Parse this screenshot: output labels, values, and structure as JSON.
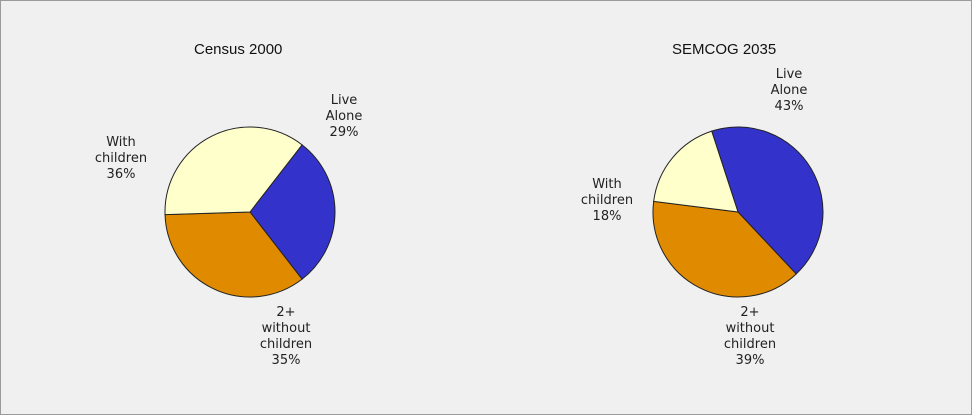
{
  "chart_data": [
    {
      "type": "pie",
      "title": "Census 2000",
      "slices": [
        {
          "label_lines": [
            "Live",
            "Alone"
          ],
          "value": 29,
          "value_text": "29%",
          "color": "#3333cc"
        },
        {
          "label_lines": [
            "2+",
            "without",
            "children"
          ],
          "value": 35,
          "value_text": "35%",
          "color": "#e08a00"
        },
        {
          "label_lines": [
            "With",
            "children"
          ],
          "value": 36,
          "value_text": "36%",
          "color": "#ffffcc"
        }
      ]
    },
    {
      "type": "pie",
      "title": "SEMCOG 2035",
      "slices": [
        {
          "label_lines": [
            "Live",
            "Alone"
          ],
          "value": 43,
          "value_text": "43%",
          "color": "#3333cc"
        },
        {
          "label_lines": [
            "2+",
            "without",
            "children"
          ],
          "value": 39,
          "value_text": "39%",
          "color": "#e08a00"
        },
        {
          "label_lines": [
            "With",
            "children"
          ],
          "value": 18,
          "value_text": "18%",
          "color": "#ffffcc"
        }
      ]
    }
  ]
}
